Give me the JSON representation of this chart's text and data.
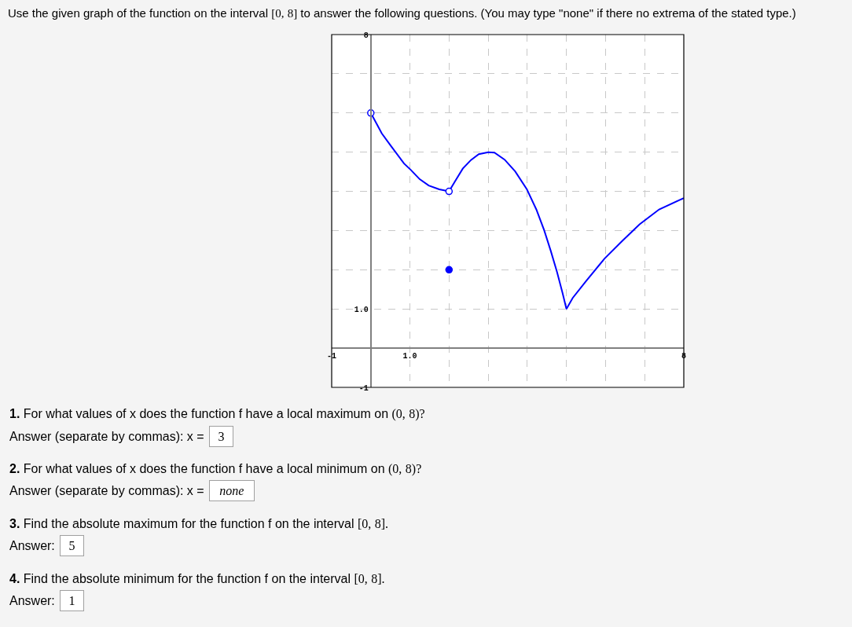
{
  "chart_data": {
    "type": "line",
    "title": "Use the given graph of the function on the interval [0, 8] to answer the following questions. (You may type \"none\" if there no extrema of the stated type.)",
    "xlim": [
      -1,
      8
    ],
    "ylim": [
      -1,
      8
    ],
    "xticks": [
      -1,
      {
        "value": 0,
        "label": null
      },
      {
        "value": 1,
        "label": "1.0"
      },
      {
        "value": 2,
        "label": null
      },
      {
        "value": 3,
        "label": null
      },
      {
        "value": 4,
        "label": null
      },
      {
        "value": 5,
        "label": null
      },
      {
        "value": 6,
        "label": null
      },
      {
        "value": 7,
        "label": null
      },
      8
    ],
    "yticks": [
      -1,
      {
        "value": 0,
        "label": null
      },
      {
        "value": 1,
        "label": "1.0"
      },
      {
        "value": 2,
        "label": null
      },
      {
        "value": 3,
        "label": null
      },
      {
        "value": 4,
        "label": null
      },
      {
        "value": 5,
        "label": null
      },
      {
        "value": 6,
        "label": null
      },
      {
        "value": 7,
        "label": null
      },
      8
    ],
    "grid": true,
    "line_style": "solid",
    "series": [
      {
        "color": "#0000ff",
        "x": [
          0,
          0.28,
          0.52,
          0.85,
          1.02,
          1.25,
          1.48,
          1.75,
          2
        ],
        "values": [
          6,
          5.48,
          5.15,
          4.71,
          4.55,
          4.31,
          4.15,
          4.05,
          4
        ]
      },
      {
        "color": "#0000ff",
        "x": [
          2,
          2.15,
          2.35,
          2.56,
          2.76,
          3,
          3.16,
          3.42,
          3.69,
          3.99,
          4.23,
          4.43,
          4.6,
          4.76,
          4.9,
          5,
          5.16,
          5.5,
          5.97,
          6.43,
          6.87,
          7.37,
          8
        ],
        "values": [
          4,
          4.25,
          4.58,
          4.8,
          4.95,
          5,
          4.99,
          4.81,
          4.51,
          4.05,
          3.54,
          3.01,
          2.48,
          1.94,
          1.41,
          1,
          1.28,
          1.71,
          2.28,
          2.74,
          3.16,
          3.54,
          3.83
        ]
      },
      {
        "type": "scatter",
        "color": "#0000ff",
        "colors": [
          "#ffffff",
          "#ffffff"
        ],
        "marker": "circle",
        "x": [
          0,
          2
        ],
        "values": [
          6,
          4
        ]
      },
      {
        "type": "scatter",
        "color": "#0000ff",
        "marker": "circle",
        "x": [
          2
        ],
        "values": [
          2
        ]
      }
    ],
    "annotations": [
      "1. For what values of x does the function f have a local maximum on (0, 8)?",
      "Answer (separate by commas): x =",
      "3",
      "2. For what values of x does the function f have a local minimum on (0, 8)?",
      "Answer (separate by commas): x =",
      "none",
      "3. Find the absolute maximum for the function f on the interval [0, 8].",
      "Answer:",
      "5",
      "4. Find the absolute minimum for the function f on the interval [0, 8].",
      "Answer:",
      "1"
    ]
  }
}
